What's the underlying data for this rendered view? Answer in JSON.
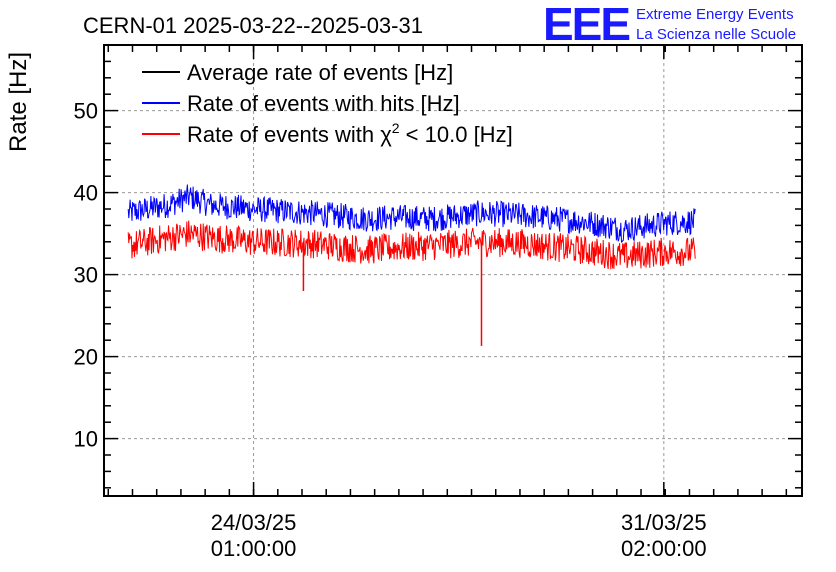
{
  "chart_data": {
    "type": "line",
    "title": "CERN-01 2025-03-22--2025-03-31",
    "xlabel": "",
    "ylabel": "Rate [Hz]",
    "ylim": [
      3,
      58
    ],
    "xlim": [
      -1.05,
      3.85
    ],
    "grid": true,
    "legend_position": "top-left",
    "x_ticks": [
      {
        "value": 0,
        "date": "24/03/25",
        "time": "01:00:00"
      },
      {
        "value": 2.88,
        "date": "31/03/25",
        "time": "02:00:00"
      }
    ],
    "y_ticks": [
      10,
      20,
      30,
      40,
      50
    ],
    "series": [
      {
        "name": "Average rate of events [Hz]",
        "color": "#000000",
        "x": [],
        "y": []
      },
      {
        "name": "Rate of events with hits [Hz]",
        "color": "#0000ff",
        "x": [
          -0.88,
          -0.6,
          -0.45,
          -0.3,
          0.0,
          0.4,
          0.8,
          1.0,
          1.25,
          1.6,
          1.9,
          2.3,
          2.6,
          2.9,
          3.1
        ],
        "y": [
          37.5,
          38.5,
          39.5,
          38.5,
          38,
          37.5,
          36.8,
          37,
          36.8,
          37.5,
          37.2,
          36.5,
          35.5,
          36.3,
          36.5
        ]
      },
      {
        "name": "Rate of events with χ² < 10.0 [Hz]",
        "color": "#ff0000",
        "x": [
          -0.88,
          -0.6,
          -0.45,
          -0.3,
          0.0,
          0.4,
          0.8,
          1.0,
          1.25,
          1.6,
          1.9,
          2.3,
          2.6,
          2.9,
          3.1
        ],
        "y": [
          33.5,
          34.5,
          35,
          34.5,
          34,
          33.8,
          33,
          33.3,
          33.5,
          34,
          33.8,
          33,
          32.2,
          32.8,
          32.8
        ]
      }
    ],
    "annotations": [
      {
        "series": "Rate of events with χ² < 10.0 [Hz]",
        "type": "dip",
        "x": 0.35,
        "y": 28
      },
      {
        "series": "Rate of events with χ² < 10.0 [Hz]",
        "type": "dip",
        "x": 1.6,
        "y": 21.3
      }
    ]
  },
  "logo": {
    "mark": "EEE",
    "line1": "Extreme Energy Events",
    "line2": "La Scienza nelle Scuole"
  },
  "legend": {
    "superscript": "2",
    "chi_prefix": "Rate of events with χ",
    "chi_suffix": " < 10.0 [Hz]"
  },
  "colors": {
    "black": "#000000",
    "blue": "#0000ff",
    "red": "#ff0000",
    "grid": "#9a9a9a",
    "logo": "#1a1aff"
  }
}
